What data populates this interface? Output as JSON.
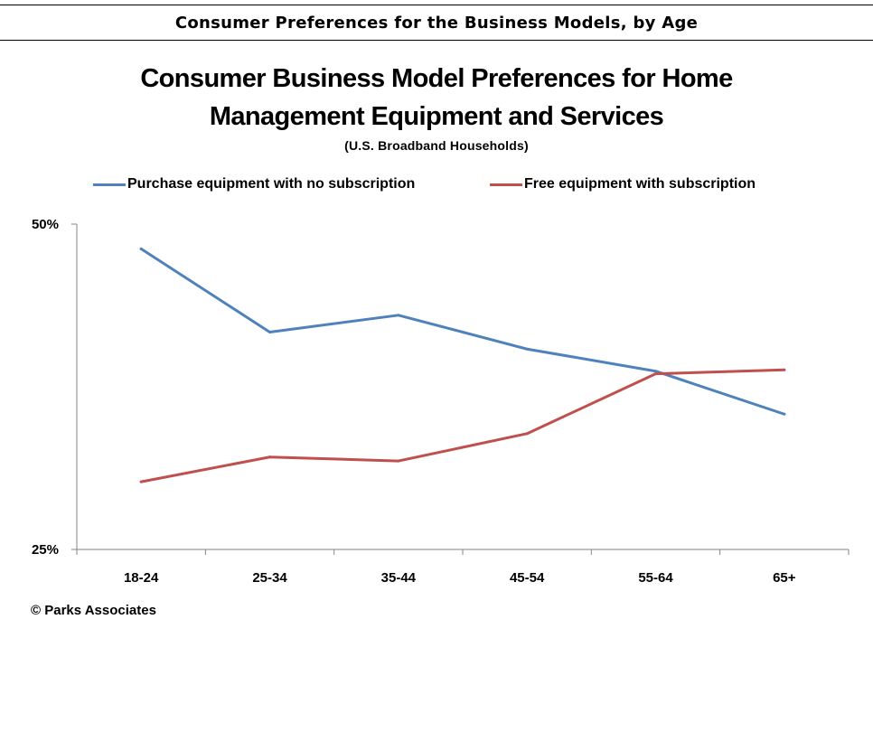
{
  "header": {
    "title": "Consumer Preferences for the Business Models, by Age"
  },
  "chart_data": {
    "type": "line",
    "title_line1": "Consumer Business Model Preferences for Home",
    "title_line2": "Management Equipment and Services",
    "subtitle": "(U.S. Broadband Households)",
    "categories": [
      "18-24",
      "25-34",
      "35-44",
      "45-54",
      "55-64",
      "65+"
    ],
    "series": [
      {
        "name": "Purchase equipment with no subscription",
        "color": "#4f81bd",
        "values": [
          48.1,
          41.7,
          43.0,
          40.4,
          38.7,
          35.4
        ]
      },
      {
        "name": "Free equipment with subscription",
        "color": "#c0504d",
        "values": [
          30.2,
          32.1,
          31.8,
          33.9,
          38.5,
          38.8
        ]
      }
    ],
    "y_ticks": [
      "50%",
      "25%"
    ],
    "ylim": [
      25,
      50
    ],
    "grid": false,
    "legend_position": "top"
  },
  "footer": {
    "copyright": "© Parks Associates"
  }
}
